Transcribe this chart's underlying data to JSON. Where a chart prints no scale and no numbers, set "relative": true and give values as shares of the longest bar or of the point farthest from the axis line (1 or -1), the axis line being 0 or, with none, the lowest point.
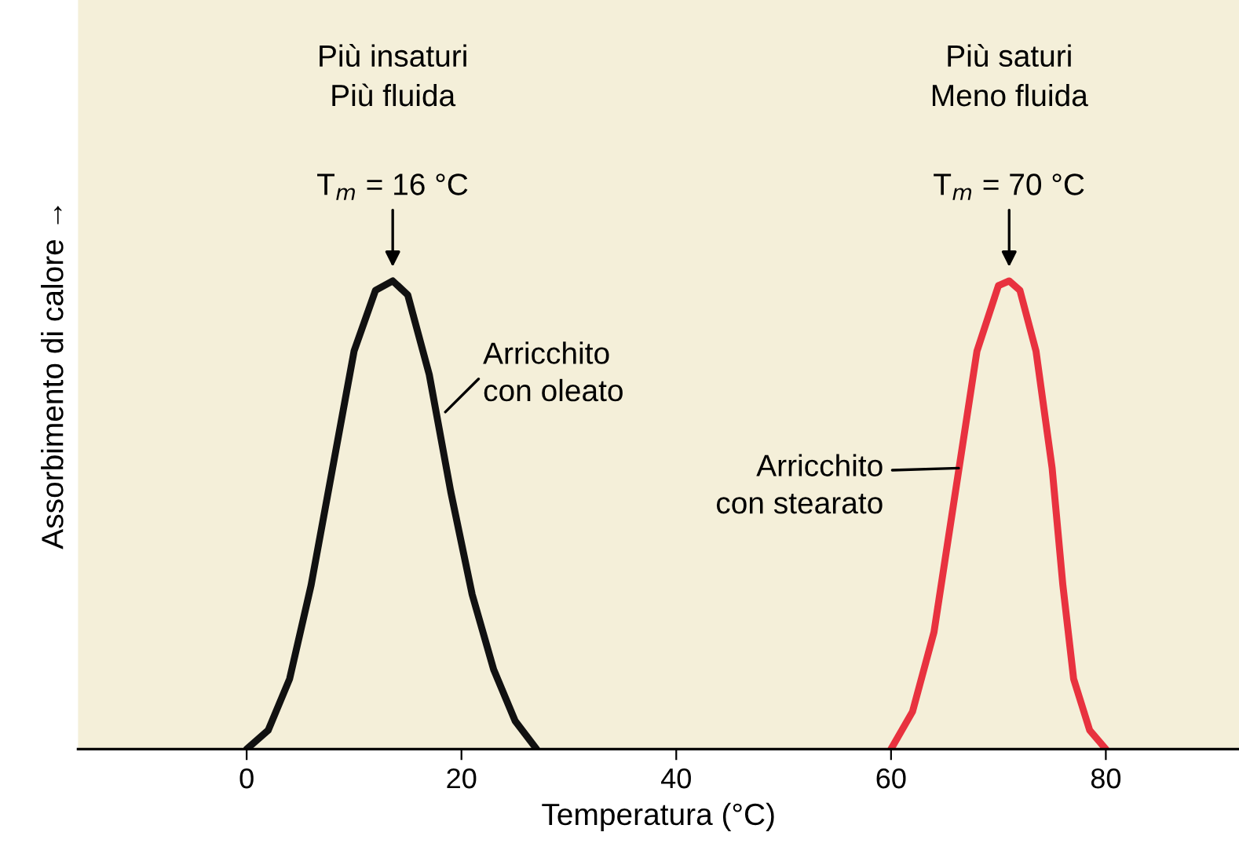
{
  "chart_data": {
    "type": "line",
    "relative": true,
    "xlabel": "Temperatura (°C)",
    "ylabel": "Assorbimento di calore →",
    "xlim": [
      -15.7,
      92.4
    ],
    "xticks": [
      0,
      20,
      40,
      60,
      80
    ],
    "series": [
      {
        "color": "#111111",
        "x": [
          0,
          2,
          4,
          6,
          8,
          10,
          12,
          13.6,
          15,
          17,
          19,
          21,
          23,
          25,
          27
        ],
        "values": [
          0,
          0.04,
          0.15,
          0.35,
          0.6,
          0.85,
          0.98,
          1,
          0.97,
          0.8,
          0.55,
          0.33,
          0.17,
          0.06,
          0
        ]
      },
      {
        "color": "#e8323f",
        "x": [
          60,
          62,
          64,
          66,
          68,
          70,
          71,
          72,
          73.5,
          75,
          76,
          77,
          78.5,
          80
        ],
        "values": [
          0,
          0.08,
          0.25,
          0.55,
          0.85,
          0.99,
          1,
          0.98,
          0.85,
          0.6,
          0.35,
          0.15,
          0.04,
          0
        ]
      }
    ],
    "annotations": [
      "Più insaturi\nPiù fluida",
      "Più saturi\nMeno fluida",
      {
        "text": "T$_{m}$ = 16 °C",
        "x": 13.6,
        "y": 1
      },
      {
        "text": "T$_{m}$ = 70 °C",
        "x": 71,
        "y": 1
      },
      {
        "text": "Arricchito\ncon oleato",
        "x": 18.5,
        "y": 0.72
      },
      {
        "text": "Arricchito\ncon stearato",
        "x": 66.3,
        "y": 0.6
      }
    ],
    "grid": false,
    "legend": false
  }
}
